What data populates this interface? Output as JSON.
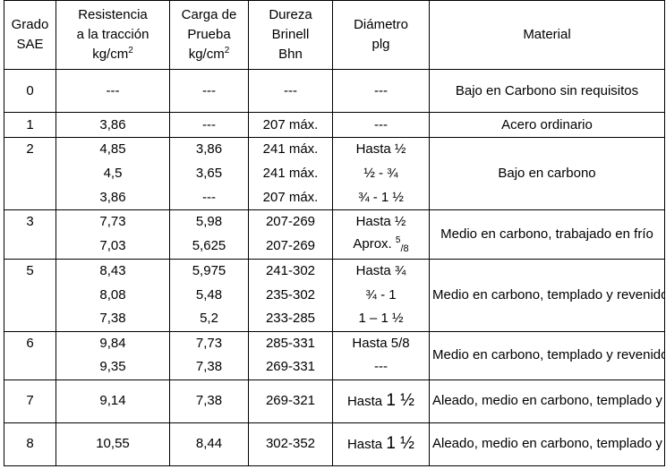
{
  "headers": {
    "grado": [
      "Grado",
      "SAE"
    ],
    "resistencia": [
      "Resistencia",
      "a la tracción",
      "kg/cm",
      "2"
    ],
    "carga": [
      "Carga de",
      "Prueba",
      "kg/cm",
      "2"
    ],
    "dureza": [
      "Dureza",
      "Brinell",
      "Bhn"
    ],
    "diametro": [
      "Diámetro",
      "plg"
    ],
    "material": "Material"
  },
  "rows": [
    {
      "grado": "0",
      "resistencia": "---",
      "carga": "---",
      "dureza": "---",
      "diametro": "---"
    },
    {
      "grado": "1",
      "resistencia": "3,86",
      "carga": "---",
      "dureza": "207 máx.",
      "diametro": "---"
    },
    {
      "grado": "2",
      "resistencia": "4,85",
      "carga": "3,86",
      "dureza": "241 máx.",
      "diametro": "Hasta ½"
    },
    {
      "grado": "",
      "resistencia": "4,5",
      "carga": "3,65",
      "dureza": "241 máx.",
      "diametro": "½ - ¾"
    },
    {
      "grado": "",
      "resistencia": "3,86",
      "carga": "---",
      "dureza": "207 máx.",
      "diametro": "¾ - 1 ½"
    },
    {
      "grado": "3",
      "resistencia": "7,73",
      "carga": "5,98",
      "dureza": "207-269",
      "diametro": "Hasta ½"
    },
    {
      "grado": "",
      "resistencia": "7,03",
      "carga": "5,625",
      "dureza": "207-269",
      "diametro_prefix": "Aprox. ",
      "diametro_num": "5",
      "diametro_den": "/8"
    },
    {
      "grado": "5",
      "resistencia": "8,43",
      "carga": "5,975",
      "dureza": "241-302",
      "diametro": "Hasta ¾"
    },
    {
      "grado": "",
      "resistencia": "8,08",
      "carga": "5,48",
      "dureza": "235-302",
      "diametro": "¾ - 1"
    },
    {
      "grado": "",
      "resistencia": "7,38",
      "carga": "5,2",
      "dureza": "233-285",
      "diametro": "1 – 1 ½"
    },
    {
      "grado": "6",
      "resistencia": "9,84",
      "carga": "7,73",
      "dureza": "285-331",
      "diametro": "Hasta 5/8"
    },
    {
      "grado": "",
      "resistencia": "9,35",
      "carga": "7,38",
      "dureza": "269-331",
      "diametro": "---"
    },
    {
      "grado": "7",
      "resistencia": "9,14",
      "carga": "7,38",
      "dureza": "269-321",
      "diametro_prefix": "Hasta ",
      "diametro_big": "1 ½"
    },
    {
      "grado": "8",
      "resistencia": "10,55",
      "carga": "8,44",
      "dureza": "302-352",
      "diametro_prefix": "Hasta ",
      "diametro_big": "1 ½"
    }
  ],
  "materials": {
    "m0": "Bajo en Carbono sin requisitos",
    "m1": "Acero ordinario",
    "m2": "Bajo en carbono",
    "m3": "Medio en carbono, trabajado en frío",
    "m5": "Medio en carbono, templado y revenido",
    "m6": "Medio en carbono, templado y revenido",
    "m7": "Aleado, medio en carbono, templado y revenido",
    "m8": "Aleado, medio en carbono, templado y revenido"
  }
}
